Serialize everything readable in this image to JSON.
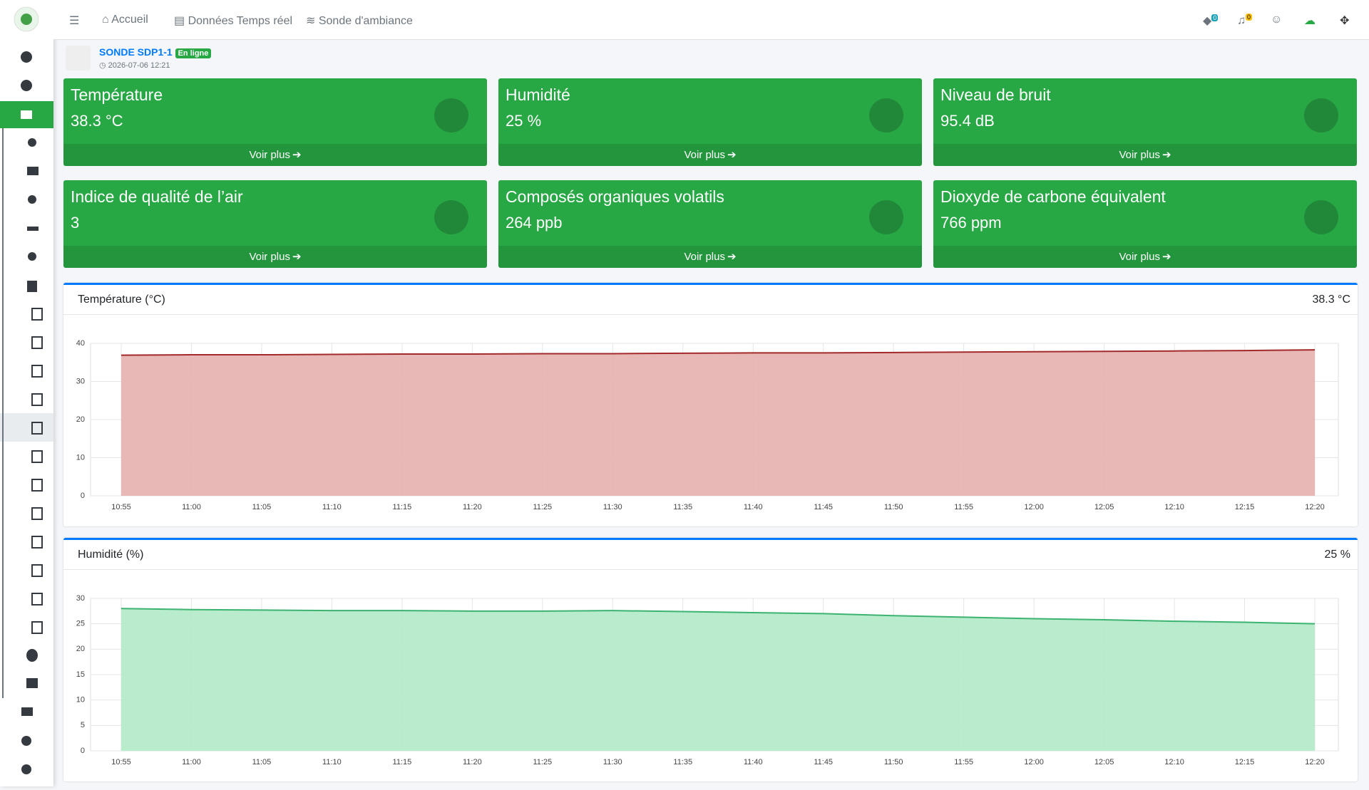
{
  "nav": {
    "items": [
      "Accueil",
      "Données Temps réel",
      "Sonde d'ambiance"
    ],
    "badges": [
      0,
      0
    ]
  },
  "device": {
    "name": "SONDE SDP1-1",
    "status": "En ligne",
    "timestamp": "2026-07-06 12:21"
  },
  "cards": [
    {
      "title": "Température",
      "value": "38.3 °C",
      "link": "Voir plus"
    },
    {
      "title": "Humidité",
      "value": "25 %",
      "link": "Voir plus"
    },
    {
      "title": "Niveau de bruit",
      "value": "95.4 dB",
      "link": "Voir plus"
    },
    {
      "title": "Indice de qualité de l’air",
      "value": "3",
      "link": "Voir plus"
    },
    {
      "title": "Composés organiques volatils",
      "value": "264 ppb",
      "link": "Voir plus"
    },
    {
      "title": "Dioxyde de carbone équivalent",
      "value": "766 ppm",
      "link": "Voir plus"
    }
  ],
  "chart_data": [
    {
      "type": "area",
      "title": "Température (°C)",
      "current": "38.3 °C",
      "color": "#a32a2a",
      "area_color": "#e6b0ae",
      "x": [
        "10:55",
        "11:00",
        "11:05",
        "11:10",
        "11:15",
        "11:20",
        "11:25",
        "11:30",
        "11:35",
        "11:40",
        "11:45",
        "11:50",
        "11:55",
        "12:00",
        "12:05",
        "12:10",
        "12:15",
        "12:20"
      ],
      "values": [
        36.9,
        37.0,
        37.0,
        37.1,
        37.2,
        37.2,
        37.3,
        37.3,
        37.4,
        37.5,
        37.5,
        37.6,
        37.7,
        37.8,
        37.9,
        38.0,
        38.1,
        38.3
      ],
      "ylim": [
        0,
        40
      ],
      "yticks": [
        0,
        10,
        20,
        30,
        40
      ],
      "grid": true
    },
    {
      "type": "area",
      "title": "Humidité (%)",
      "current": "25 %",
      "color": "#3cb371",
      "area_color": "#b1e9c8",
      "x": [
        "10:55",
        "11:00",
        "11:05",
        "11:10",
        "11:15",
        "11:20",
        "11:25",
        "11:30",
        "11:35",
        "11:40",
        "11:45",
        "11:50",
        "11:55",
        "12:00",
        "12:05",
        "12:10",
        "12:15",
        "12:20"
      ],
      "values": [
        28.0,
        27.8,
        27.7,
        27.6,
        27.6,
        27.5,
        27.5,
        27.6,
        27.4,
        27.2,
        27.0,
        26.6,
        26.3,
        26.0,
        25.8,
        25.5,
        25.3,
        25.0
      ],
      "ylim": [
        0,
        30
      ],
      "yticks": [
        0,
        5,
        10,
        15,
        20,
        25,
        30
      ],
      "grid": true
    }
  ]
}
